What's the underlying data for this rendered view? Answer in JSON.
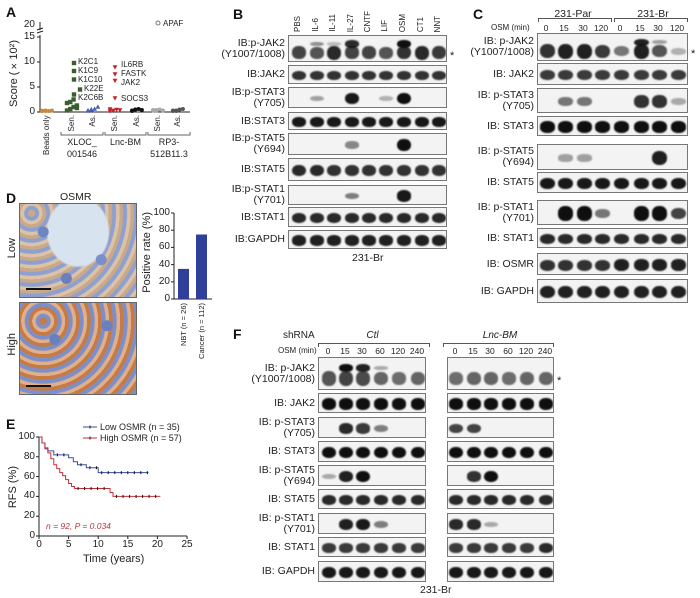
{
  "panels": {
    "a": "A",
    "b": "B",
    "c": "C",
    "d": "D",
    "e": "E",
    "f": "F"
  },
  "panelA": {
    "ylabel": "Score (×10²)",
    "yticks": [
      "0",
      "5",
      "10",
      "15",
      "20"
    ],
    "break_marker": "20",
    "apaf": {
      "label": "APAF",
      "value": 20
    },
    "columns": [
      {
        "label": "Beads only",
        "color": "#c8893a",
        "shape": "circle",
        "values": [
          0.2,
          0.3,
          0.2,
          0.3,
          0.25,
          0.2
        ]
      },
      {
        "label": "Sen.",
        "color": "#3b5e2f",
        "shape": "square",
        "values": [
          0.3,
          0.6,
          1.0,
          1.3,
          1.8,
          2.0,
          2.5,
          0.8
        ],
        "named": [
          {
            "name": "K2C1",
            "value": 9.8
          },
          {
            "name": "K1C9",
            "value": 8.2
          },
          {
            "name": "K1C10",
            "value": 6.5
          },
          {
            "name": "K22E",
            "value": 4.5
          },
          {
            "name": "K2C6B",
            "value": 3.5
          }
        ]
      },
      {
        "label": "As.",
        "color": "#4a5fb5",
        "shape": "triangle",
        "values": [
          0.2,
          0.4,
          0.6,
          1.0,
          0.3,
          0.5
        ]
      },
      {
        "label": "Sen.",
        "color": "#c3222c",
        "shape": "tri-down",
        "values": [
          0.2,
          0.3,
          0.5,
          0.4,
          0.6,
          0.3
        ],
        "named": [
          {
            "name": "IL6RB",
            "value": 9.0
          },
          {
            "name": "FASTK",
            "value": 7.6
          },
          {
            "name": "JAK2",
            "value": 6.3
          },
          {
            "name": "SOCS3",
            "value": 2.8
          }
        ]
      },
      {
        "label": "As.",
        "color": "#111111",
        "shape": "circle",
        "values": [
          0.3,
          0.5,
          0.6,
          0.4,
          0.2,
          0.5
        ]
      },
      {
        "label": "Sen.",
        "color": "#a8a8a8",
        "shape": "circle",
        "values": [
          0.3,
          0.4,
          0.5,
          0.3,
          0.4,
          0.2
        ]
      },
      {
        "label": "As.",
        "color": "#555555",
        "shape": "circle",
        "values": [
          0.2,
          0.3,
          0.5,
          0.6,
          0.3,
          0.2
        ]
      }
    ],
    "groups": [
      {
        "line1": "XLOC_",
        "line2": "001546"
      },
      {
        "line1": "Lnc-BM",
        "line2": ""
      },
      {
        "line1": "RP3-",
        "line2": "512B11.3"
      }
    ]
  },
  "panelB": {
    "lanes": [
      "PBS",
      "IL-6",
      "IL-11",
      "IL-27",
      "CNTF",
      "LIF",
      "OSM",
      "CT1",
      "NNT"
    ],
    "footer": "231-Br",
    "asterisk": "*",
    "rows": [
      {
        "label": [
          "IB:p-JAK2",
          "(Y1007/1008)"
        ],
        "bands": [
          0.7,
          0.6,
          0.85,
          0.7,
          0.7,
          0.6,
          0.8,
          0.85,
          0.75
        ],
        "upper": [
          0,
          0.3,
          0.05,
          0.85,
          0,
          0,
          1,
          0,
          0
        ]
      },
      {
        "label": [
          "IB:JAK2"
        ],
        "bands": [
          0.8,
          0.8,
          0.8,
          0.8,
          0.8,
          0.8,
          0.8,
          0.8,
          0.8
        ]
      },
      {
        "label": [
          "IB:p-STAT3",
          "(Y705)"
        ],
        "bands": [
          0,
          0.15,
          0,
          0.95,
          0,
          0.05,
          1,
          0,
          0
        ]
      },
      {
        "label": [
          "IB:STAT3"
        ],
        "bands": [
          0.95,
          0.95,
          0.95,
          0.95,
          0.95,
          0.95,
          0.95,
          0.95,
          0.95
        ]
      },
      {
        "label": [
          "IB:p-STAT5",
          "(Y694)"
        ],
        "bands": [
          0,
          0,
          0,
          0.3,
          0,
          0,
          1,
          0,
          0
        ]
      },
      {
        "label": [
          "IB:STAT5"
        ],
        "bands": [
          0.85,
          0.85,
          0.8,
          0.8,
          0.8,
          0.8,
          0.8,
          0.8,
          0.8
        ]
      },
      {
        "label": [
          "IB:p-STAT1",
          "(Y701)"
        ],
        "bands": [
          0,
          0,
          0,
          0.35,
          0,
          0,
          0.95,
          0,
          0
        ]
      },
      {
        "label": [
          "IB:STAT1"
        ],
        "bands": [
          0.85,
          0.85,
          0.85,
          0.85,
          0.85,
          0.85,
          0.85,
          0.85,
          0.85
        ]
      },
      {
        "label": [
          "IB:GAPDH"
        ],
        "bands": [
          0.9,
          0.9,
          0.9,
          0.9,
          0.9,
          0.9,
          0.9,
          0.9,
          0.9
        ]
      }
    ]
  },
  "panelC": {
    "groups": [
      "231-Par",
      "231-Br"
    ],
    "osm_label": "OSM (min)",
    "lanes": [
      "0",
      "15",
      "30",
      "120",
      "0",
      "15",
      "30",
      "120"
    ],
    "asterisk": "*",
    "rows": [
      {
        "label": [
          "IB: p-JAK2",
          "(Y1007/1008)"
        ],
        "bands": [
          0.8,
          0.9,
          0.9,
          0.75,
          0.4,
          0.9,
          0.6,
          0.05
        ],
        "upper": [
          0,
          0,
          0,
          0,
          0,
          0.9,
          0.2,
          0
        ]
      },
      {
        "label": [
          "IB: JAK2"
        ],
        "bands": [
          0.75,
          0.75,
          0.75,
          0.75,
          0.75,
          0.75,
          0.75,
          0.75
        ]
      },
      {
        "label": [
          "IB: p-STAT3",
          "(Y705)"
        ],
        "bands": [
          0,
          0.4,
          0.4,
          0,
          0,
          0.8,
          0.8,
          0.1
        ]
      },
      {
        "label": [
          "IB: STAT3"
        ],
        "bands": [
          1,
          1,
          1,
          1,
          1,
          1,
          1,
          1
        ]
      },
      {
        "label": [
          "IB: p-STAT5",
          "(Y694)"
        ],
        "bands": [
          0,
          0.15,
          0.15,
          0,
          0,
          0,
          0.9,
          0
        ]
      },
      {
        "label": [
          "IB: STAT5"
        ],
        "bands": [
          0.95,
          0.95,
          0.95,
          0.95,
          0.95,
          0.95,
          0.95,
          0.95
        ]
      },
      {
        "label": [
          "IB: p-STAT1",
          "(Y701)"
        ],
        "bands": [
          0,
          1,
          1,
          0.4,
          0,
          1,
          1,
          0.7
        ]
      },
      {
        "label": [
          "IB: STAT1"
        ],
        "bands": [
          0.85,
          0.85,
          0.85,
          0.85,
          0.85,
          0.85,
          0.85,
          0.85
        ]
      },
      {
        "label": [
          "IB: OSMR"
        ],
        "bands": [
          0.8,
          0.8,
          0.8,
          0.8,
          0.9,
          0.9,
          0.9,
          0.9
        ]
      },
      {
        "label": [
          "IB: GAPDH"
        ],
        "bands": [
          0.9,
          0.9,
          0.9,
          0.9,
          0.9,
          0.9,
          0.9,
          0.9
        ]
      }
    ]
  },
  "panelD": {
    "title": "OSMR",
    "low": "Low",
    "high": "High",
    "chart_data": {
      "type": "bar",
      "categories": [
        "NBT (n = 26)",
        "Cancer (n = 112)"
      ],
      "values": [
        35,
        75
      ],
      "ylabel": "Positive rate (%)",
      "ylim": [
        0,
        100
      ],
      "yticks": [
        "0",
        "20",
        "40",
        "60",
        "80",
        "100"
      ],
      "color": "#2f3f9a"
    }
  },
  "panelE": {
    "chart_data": {
      "type": "line",
      "xlabel": "Time (years)",
      "ylabel": "RFS (%)",
      "xlim": [
        0,
        25
      ],
      "ylim": [
        0,
        100
      ],
      "xticks": [
        "0",
        "5",
        "10",
        "15",
        "20",
        "25"
      ],
      "yticks": [
        "0",
        "20",
        "40",
        "60",
        "80",
        "100"
      ],
      "series": [
        {
          "name": "Low OSMR (n = 35)",
          "color": "#3a4f9a",
          "x": [
            0,
            0.5,
            1,
            1.5,
            2.5,
            4.5,
            5,
            5.8,
            6.5,
            8,
            10,
            18.5
          ],
          "y": [
            100,
            94,
            89,
            86,
            82,
            82,
            79,
            75,
            72,
            69,
            64,
            64
          ]
        },
        {
          "name": "High OSMR (n = 57)",
          "color": "#c0303a",
          "x": [
            0,
            0.5,
            1,
            1.5,
            2,
            2.5,
            3,
            3.5,
            4,
            4.5,
            5,
            5.5,
            6,
            12,
            12.5,
            20.5
          ],
          "y": [
            100,
            94,
            88,
            84,
            78,
            72,
            68,
            64,
            61,
            57,
            53,
            50,
            48,
            44,
            40,
            40
          ]
        }
      ],
      "annotation": "n = 92, P = 0.034"
    }
  },
  "panelF": {
    "shrna_label": "shRNA",
    "groups": [
      "Ctl",
      "Lnc-BM"
    ],
    "osm_label": "OSM (min)",
    "lanes": [
      "0",
      "15",
      "30",
      "60",
      "120",
      "240",
      "0",
      "15",
      "30",
      "60",
      "120",
      "240"
    ],
    "footer": "231-Br",
    "asterisk": "*",
    "rows": [
      {
        "label": [
          "IB: p-JAK2",
          "(Y1007/1008)"
        ],
        "bands": [
          0.6,
          0.7,
          0.65,
          0.5,
          0.45,
          0.5,
          0.45,
          0.5,
          0.5,
          0.45,
          0.5,
          0.5
        ],
        "upper": [
          0,
          1,
          0.9,
          0.15,
          0,
          0,
          0,
          0,
          0,
          0,
          0,
          0
        ]
      },
      {
        "label": [
          "IB: JAK2"
        ],
        "bands": [
          1,
          1,
          1,
          1,
          1,
          1,
          1,
          1,
          1,
          1,
          1,
          1
        ]
      },
      {
        "label": [
          "IB: p-STAT3",
          "(Y705)"
        ],
        "bands": [
          0,
          0.85,
          0.75,
          0.35,
          0,
          0,
          0.7,
          0.7,
          0,
          0,
          0,
          0
        ]
      },
      {
        "label": [
          "IB: STAT3"
        ],
        "bands": [
          1,
          1,
          1,
          1,
          1,
          1,
          1,
          1,
          1,
          1,
          1,
          1
        ]
      },
      {
        "label": [
          "IB: p-STAT5",
          "(Y694)"
        ],
        "bands": [
          0.1,
          0.9,
          1,
          0,
          0,
          0,
          0,
          0.8,
          1,
          0,
          0,
          0
        ]
      },
      {
        "label": [
          "IB: STAT5"
        ],
        "bands": [
          0.85,
          0.85,
          0.85,
          0.85,
          0.85,
          0.85,
          0.85,
          0.85,
          0.85,
          0.85,
          0.85,
          0.85
        ]
      },
      {
        "label": [
          "IB: p-STAT1",
          "(Y701)"
        ],
        "bands": [
          0,
          0.9,
          0.95,
          0.35,
          0,
          0,
          0.85,
          0.85,
          0.1,
          0,
          0,
          0
        ]
      },
      {
        "label": [
          "IB: STAT1"
        ],
        "bands": [
          0.75,
          0.75,
          0.75,
          0.75,
          0.75,
          0.75,
          0.75,
          0.75,
          0.75,
          0.75,
          0.75,
          0.85
        ]
      },
      {
        "label": [
          "IB: GAPDH"
        ],
        "bands": [
          0.95,
          0.95,
          0.95,
          0.95,
          0.95,
          0.95,
          0.95,
          0.95,
          0.95,
          0.95,
          0.95,
          0.95
        ]
      }
    ]
  }
}
